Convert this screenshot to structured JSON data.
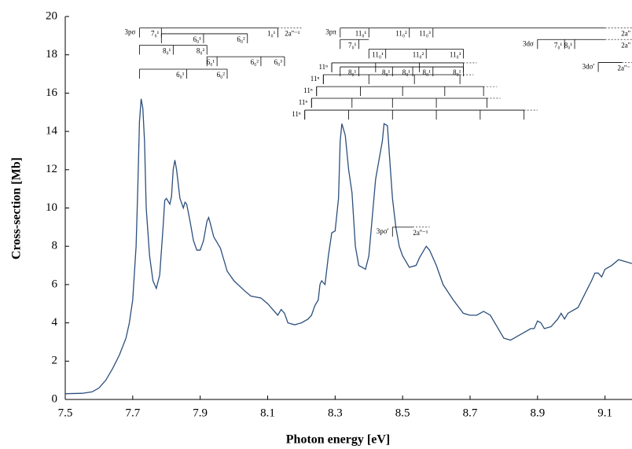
{
  "chart_data": {
    "type": "line",
    "xlabel": "Photon energy [eV]",
    "ylabel": "Cross-section [Mb]",
    "xlim": [
      7.5,
      9.18
    ],
    "ylim": [
      0,
      20
    ],
    "xticks": [
      7.5,
      7.7,
      7.9,
      8.1,
      8.3,
      8.5,
      8.7,
      8.9,
      9.1
    ],
    "yticks": [
      0,
      2,
      4,
      6,
      8,
      10,
      12,
      14,
      16,
      18,
      20
    ],
    "x": [
      7.5,
      7.55,
      7.58,
      7.6,
      7.62,
      7.64,
      7.66,
      7.68,
      7.69,
      7.7,
      7.71,
      7.715,
      7.72,
      7.725,
      7.73,
      7.735,
      7.74,
      7.75,
      7.76,
      7.77,
      7.78,
      7.79,
      7.795,
      7.8,
      7.81,
      7.815,
      7.82,
      7.825,
      7.83,
      7.84,
      7.85,
      7.855,
      7.86,
      7.87,
      7.88,
      7.89,
      7.9,
      7.91,
      7.92,
      7.925,
      7.93,
      7.94,
      7.95,
      7.96,
      7.97,
      7.98,
      8.0,
      8.03,
      8.05,
      8.08,
      8.1,
      8.12,
      8.13,
      8.14,
      8.15,
      8.16,
      8.18,
      8.2,
      8.22,
      8.23,
      8.24,
      8.25,
      8.255,
      8.26,
      8.27,
      8.28,
      8.29,
      8.3,
      8.31,
      8.315,
      8.32,
      8.33,
      8.34,
      8.35,
      8.36,
      8.37,
      8.38,
      8.39,
      8.4,
      8.41,
      8.42,
      8.43,
      8.44,
      8.445,
      8.455,
      8.46,
      8.47,
      8.48,
      8.49,
      8.5,
      8.52,
      8.54,
      8.55,
      8.57,
      8.58,
      8.6,
      8.62,
      8.65,
      8.68,
      8.7,
      8.72,
      8.74,
      8.76,
      8.78,
      8.8,
      8.82,
      8.84,
      8.86,
      8.88,
      8.89,
      8.9,
      8.91,
      8.92,
      8.94,
      8.96,
      8.97,
      8.98,
      8.99,
      9.0,
      9.02,
      9.04,
      9.06,
      9.07,
      9.08,
      9.09,
      9.1,
      9.12,
      9.14,
      9.16,
      9.18
    ],
    "series": [
      {
        "color": "#2c4f7c",
        "values": [
          0.3,
          0.32,
          0.4,
          0.6,
          1.0,
          1.6,
          2.3,
          3.2,
          4.0,
          5.2,
          8,
          11,
          14.5,
          15.7,
          15.2,
          13.5,
          10,
          7.5,
          6.2,
          5.8,
          6.5,
          9.0,
          10.4,
          10.5,
          10.2,
          10.6,
          12,
          12.5,
          12.0,
          10.5,
          10.0,
          10.3,
          10.2,
          9.3,
          8.3,
          7.8,
          7.8,
          8.3,
          9.3,
          9.5,
          9.2,
          8.5,
          8.2,
          7.9,
          7.3,
          6.7,
          6.2,
          5.7,
          5.4,
          5.3,
          5.0,
          4.6,
          4.4,
          4.7,
          4.5,
          4.0,
          3.9,
          4.0,
          4.2,
          4.4,
          4.9,
          5.2,
          6.0,
          6.2,
          6.0,
          7.5,
          8.7,
          8.8,
          10.5,
          13.5,
          14.4,
          13.8,
          12.0,
          10.8,
          8.0,
          7.0,
          6.9,
          6.8,
          7.5,
          9.5,
          11.5,
          12.5,
          13.5,
          14.4,
          14.3,
          13,
          10.5,
          9.0,
          8.0,
          7.5,
          6.9,
          7.0,
          7.4,
          8.0,
          7.8,
          7.0,
          6.0,
          5.2,
          4.5,
          4.4,
          4.4,
          4.6,
          4.4,
          3.8,
          3.2,
          3.1,
          3.3,
          3.5,
          3.7,
          3.7,
          4.1,
          4.0,
          3.7,
          3.8,
          4.2,
          4.5,
          4.2,
          4.5,
          4.6,
          4.8,
          5.5,
          6.2,
          6.6,
          6.6,
          6.4,
          6.8,
          7.0,
          7.3,
          7.2,
          7.1
        ]
      }
    ],
    "progressions": [
      {
        "label": "3pσ",
        "y": 19.4,
        "x0": 7.72,
        "x1": 8.13,
        "dash_to": 8.2,
        "ticks": [
          7.785,
          8.13
        ],
        "tick_labels": [
          "7₀¹",
          "1₀¹"
        ],
        "end_label": "2a''⁻¹"
      },
      {
        "y": 19.1,
        "x0": 7.785,
        "x1": 8.04,
        "ticks": [
          7.91,
          8.04
        ],
        "tick_labels": [
          "6₀¹",
          "6₀²"
        ]
      },
      {
        "y": 18.5,
        "x0": 7.72,
        "x1": 7.92,
        "ticks": [
          7.82,
          7.92
        ],
        "tick_labels": [
          "8₀¹",
          "8₀²"
        ]
      },
      {
        "y": 17.9,
        "x0": 7.92,
        "x1": 8.15,
        "ticks": [
          7.95,
          8.08,
          8.15
        ],
        "tick_labels": [
          "6₀¹",
          "6₀²",
          "6₀³"
        ]
      },
      {
        "y": 17.25,
        "x0": 7.72,
        "x1": 7.98,
        "ticks": [
          7.86,
          7.98
        ],
        "tick_labels": [
          "6₀¹",
          "6₀²"
        ]
      },
      {
        "label": "3pπ",
        "y": 19.4,
        "x0": 8.315,
        "x1": 9.1,
        "dash_to": 9.18,
        "ticks": [
          8.4,
          8.52,
          8.59
        ],
        "tick_labels": [
          "11₀¹",
          "11₀²",
          "11₀³"
        ],
        "end_label": "2a''"
      },
      {
        "y": 18.8,
        "x0": 8.315,
        "x1": 8.4,
        "ticks": [
          8.37
        ],
        "tick_labels": [
          "7₀¹"
        ]
      },
      {
        "y": 18.3,
        "x0": 8.4,
        "x1": 8.68,
        "ticks": [
          8.45,
          8.57,
          8.68
        ],
        "tick_labels": [
          "11₀¹",
          "11₀²",
          "11₀³"
        ]
      },
      {
        "y": 17.37,
        "x0": 8.315,
        "x1": 8.68,
        "ticks": [
          8.37,
          8.47,
          8.53,
          8.59,
          8.68
        ],
        "tick_labels": [
          "8₀¹",
          "8₀¹",
          "8₀¹",
          "8₀¹",
          "8₀¹"
        ]
      },
      {
        "label": "3dσ",
        "y": 18.8,
        "x0": 8.9,
        "x1": 9.1,
        "dash_to": 9.18,
        "ticks": [
          8.98,
          9.01
        ],
        "tick_labels": [
          "7₀¹",
          "8₀¹"
        ],
        "end_label": "2a''"
      },
      {
        "label": "3dσ'",
        "y": 17.6,
        "x0": 9.08,
        "x1": 9.15,
        "dash_to": 9.18,
        "ticks": [],
        "end_label": "2a''⁻"
      },
      {
        "label": "11ⁿ",
        "y": 17.58,
        "x0": 8.29,
        "x1": 8.68,
        "dash_to": 8.72,
        "ticks": [
          8.29,
          8.42,
          8.55,
          8.68
        ]
      },
      {
        "label": "11ⁿ",
        "y": 16.96,
        "x0": 8.265,
        "x1": 8.67,
        "dash_to": 8.71,
        "ticks": [
          8.265,
          8.4,
          8.535,
          8.67
        ]
      },
      {
        "label": "11ⁿ",
        "y": 16.34,
        "x0": 8.245,
        "x1": 8.74,
        "dash_to": 8.78,
        "ticks": [
          8.245,
          8.375,
          8.5,
          8.625,
          8.74
        ]
      },
      {
        "label": "11ⁿ",
        "y": 15.73,
        "x0": 8.23,
        "x1": 8.75,
        "dash_to": 8.79,
        "ticks": [
          8.23,
          8.35,
          8.47,
          8.6,
          8.75
        ]
      },
      {
        "label": "11ⁿ",
        "y": 15.11,
        "x0": 8.21,
        "x1": 8.86,
        "dash_to": 8.9,
        "ticks": [
          8.21,
          8.34,
          8.47,
          8.6,
          8.73,
          8.86
        ]
      },
      {
        "label": "3pσ'",
        "y": 9.0,
        "x0": 8.47,
        "x1": 8.53,
        "dash_to": 8.58,
        "ticks": [],
        "end_label": "2a''⁻¹"
      }
    ]
  }
}
